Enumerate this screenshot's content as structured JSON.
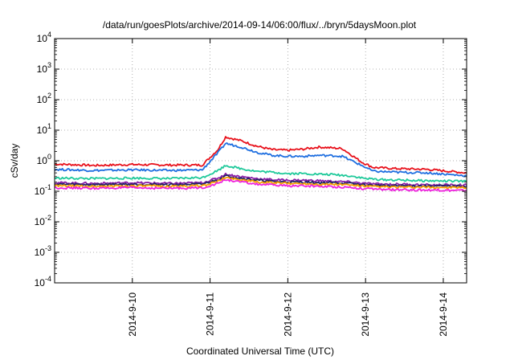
{
  "chart_data": {
    "type": "line",
    "title": "/data/run/goesPlots/archive/2014-09-14/06:00/flux/../bryn/5daysMoon.plot",
    "xlabel": "Coordinated Universal Time (UTC)",
    "ylabel": "cSv/day",
    "yscale": "log",
    "grid": true,
    "legend": "none",
    "xlim": [
      0,
      5.3
    ],
    "ylim": [
      0.0001,
      10000
    ],
    "x_ticks": [
      {
        "x": 1,
        "label": "2014-9-10"
      },
      {
        "x": 2,
        "label": "2014-9-11"
      },
      {
        "x": 3,
        "label": "2014-9-12"
      },
      {
        "x": 4,
        "label": "2014-9-13"
      },
      {
        "x": 5,
        "label": "2014-9-14"
      }
    ],
    "y_ticks": [
      {
        "value": 0.0001,
        "base": "10",
        "exp": "-4"
      },
      {
        "value": 0.001,
        "base": "10",
        "exp": "-3"
      },
      {
        "value": 0.01,
        "base": "10",
        "exp": "-2"
      },
      {
        "value": 0.1,
        "base": "10",
        "exp": "-1"
      },
      {
        "value": 1,
        "base": "10",
        "exp": "0"
      },
      {
        "value": 10,
        "base": "10",
        "exp": "1"
      },
      {
        "value": 100,
        "base": "10",
        "exp": "2"
      },
      {
        "value": 1000,
        "base": "10",
        "exp": "3"
      },
      {
        "value": 10000,
        "base": "10",
        "exp": "4"
      }
    ],
    "series": [
      {
        "color": "#e8111b",
        "x": [
          0,
          0.5,
          1.0,
          1.5,
          1.9,
          2.1,
          2.2,
          2.4,
          2.6,
          2.8,
          3.0,
          3.2,
          3.4,
          3.6,
          3.7,
          3.95,
          4.1,
          4.4,
          4.8,
          5.3
        ],
        "y": [
          0.78,
          0.7,
          0.75,
          0.72,
          0.72,
          2.3,
          6.0,
          4.5,
          3.0,
          2.3,
          2.2,
          2.4,
          2.8,
          2.6,
          2.5,
          0.9,
          0.6,
          0.55,
          0.52,
          0.4
        ]
      },
      {
        "color": "#1f6fe0",
        "x": [
          0,
          0.5,
          1.0,
          1.5,
          1.9,
          2.1,
          2.2,
          2.4,
          2.6,
          2.8,
          3.0,
          3.2,
          3.4,
          3.6,
          3.7,
          3.95,
          4.1,
          4.4,
          4.8,
          5.3
        ],
        "y": [
          0.52,
          0.48,
          0.5,
          0.48,
          0.5,
          1.8,
          3.7,
          2.8,
          1.9,
          1.5,
          1.4,
          1.4,
          1.5,
          1.45,
          1.4,
          0.7,
          0.45,
          0.42,
          0.4,
          0.32
        ]
      },
      {
        "color": "#1ec99a",
        "x": [
          0,
          0.5,
          1.0,
          1.5,
          1.9,
          2.1,
          2.2,
          2.4,
          2.6,
          2.8,
          3.0,
          3.2,
          3.4,
          3.6,
          3.8,
          4.0,
          4.2,
          4.5,
          4.8,
          5.3
        ],
        "y": [
          0.27,
          0.26,
          0.27,
          0.26,
          0.28,
          0.48,
          0.7,
          0.55,
          0.45,
          0.42,
          0.38,
          0.38,
          0.36,
          0.35,
          0.32,
          0.26,
          0.24,
          0.23,
          0.22,
          0.21
        ]
      },
      {
        "color": "#8a1ea8",
        "x": [
          0,
          0.5,
          1.0,
          1.5,
          1.9,
          2.1,
          2.2,
          2.4,
          2.6,
          2.8,
          3.0,
          3.2,
          3.4,
          3.6,
          3.8,
          4.0,
          4.2,
          4.5,
          4.8,
          5.3
        ],
        "y": [
          0.19,
          0.18,
          0.19,
          0.18,
          0.19,
          0.27,
          0.36,
          0.3,
          0.26,
          0.24,
          0.23,
          0.23,
          0.22,
          0.21,
          0.2,
          0.18,
          0.17,
          0.17,
          0.16,
          0.16
        ]
      },
      {
        "color": "#222266",
        "x": [
          0,
          0.5,
          1.0,
          1.5,
          1.9,
          2.1,
          2.2,
          2.4,
          2.6,
          2.8,
          3.0,
          3.2,
          3.4,
          3.6,
          3.8,
          4.0,
          4.2,
          4.5,
          4.8,
          5.3
        ],
        "y": [
          0.17,
          0.165,
          0.17,
          0.165,
          0.17,
          0.24,
          0.32,
          0.27,
          0.23,
          0.21,
          0.2,
          0.2,
          0.19,
          0.19,
          0.18,
          0.16,
          0.155,
          0.15,
          0.15,
          0.145
        ]
      },
      {
        "color": "#f5a000",
        "x": [
          0,
          0.5,
          1.0,
          1.5,
          1.9,
          2.1,
          2.2,
          2.4,
          2.6,
          2.8,
          3.0,
          3.2,
          3.4,
          3.6,
          3.8,
          4.0,
          4.2,
          4.5,
          4.8,
          5.3
        ],
        "y": [
          0.15,
          0.145,
          0.15,
          0.145,
          0.15,
          0.21,
          0.28,
          0.24,
          0.2,
          0.19,
          0.18,
          0.18,
          0.17,
          0.17,
          0.16,
          0.145,
          0.14,
          0.135,
          0.135,
          0.13
        ]
      },
      {
        "color": "#ee22dd",
        "x": [
          0,
          0.5,
          1.0,
          1.5,
          1.9,
          2.1,
          2.2,
          2.4,
          2.6,
          2.8,
          3.0,
          3.2,
          3.4,
          3.6,
          3.8,
          4.0,
          4.2,
          4.5,
          4.8,
          5.3
        ],
        "y": [
          0.13,
          0.125,
          0.13,
          0.125,
          0.13,
          0.18,
          0.24,
          0.2,
          0.17,
          0.16,
          0.15,
          0.15,
          0.145,
          0.14,
          0.135,
          0.12,
          0.115,
          0.11,
          0.11,
          0.105
        ]
      }
    ]
  }
}
